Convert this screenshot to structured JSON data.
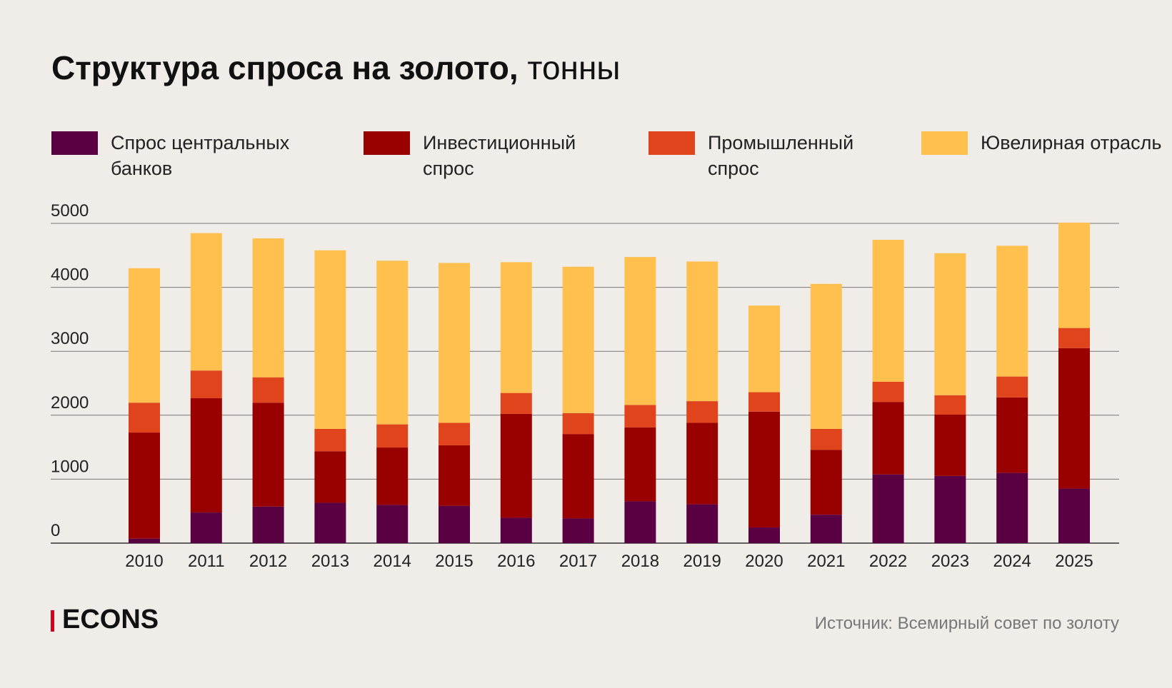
{
  "chart_data": {
    "type": "stacked_bar",
    "title": "Структура спроса на золото,",
    "title_unit": "тонны",
    "categories": [
      "2010",
      "2011",
      "2012",
      "2013",
      "2014",
      "2015",
      "2016",
      "2017",
      "2018",
      "2019",
      "2020",
      "2021",
      "2022",
      "2023",
      "2024",
      "2025"
    ],
    "series": [
      {
        "name": "Спрос центральных банков",
        "color": "#5a0042",
        "values": [
          70,
          479,
          572,
          631,
          596,
          584,
          397,
          386,
          654,
          607,
          245,
          444,
          1075,
          1051,
          1098,
          853
        ]
      },
      {
        "name": "Инвестиционный спрос",
        "color": "#990000",
        "values": [
          1659,
          1787,
          1624,
          806,
          899,
          946,
          1624,
          1320,
          1157,
          1274,
          1811,
          1016,
          1133,
          958,
          1180,
          2196
        ]
      },
      {
        "name": "Промышленный спрос",
        "color": "#e0441c",
        "values": [
          467,
          433,
          397,
          350,
          362,
          351,
          327,
          327,
          350,
          339,
          304,
          327,
          315,
          304,
          327,
          315
        ]
      },
      {
        "name": "Ювелирная отрасль",
        "color": "#ffc04d",
        "values": [
          2103,
          2149,
          2173,
          2792,
          2559,
          2500,
          2045,
          2289,
          2313,
          2184,
          1355,
          2267,
          2220,
          2220,
          2045,
          1648
        ]
      }
    ],
    "ylim": [
      0,
      5000
    ],
    "yticks": [
      0,
      1000,
      2000,
      3000,
      4000,
      5000
    ],
    "grid": true,
    "brand": "ECONS",
    "source": "Источник: Всемирный совет по золоту"
  }
}
